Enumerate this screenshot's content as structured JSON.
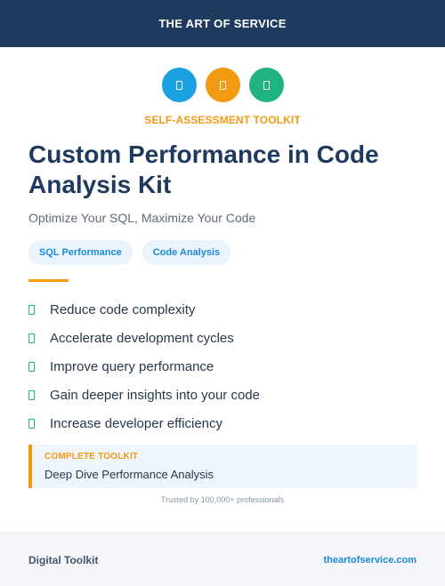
{
  "header": {
    "brand": "THE ART OF SERVICE"
  },
  "icons": [
    {
      "name": "blue-circle-icon",
      "color": "#1ba1e2"
    },
    {
      "name": "orange-circle-icon",
      "color": "#f29a12"
    },
    {
      "name": "green-circle-icon",
      "color": "#1fb383"
    }
  ],
  "kicker": "SELF-ASSESSMENT TOOLKIT",
  "title": "Custom Performance in Code Analysis Kit",
  "subtitle": "Optimize Your SQL, Maximize Your Code",
  "tags": [
    "SQL Performance",
    "Code Analysis"
  ],
  "benefits": [
    "Reduce code complexity",
    "Accelerate development cycles",
    "Improve query performance",
    "Gain deeper insights into your code",
    "Increase developer efficiency"
  ],
  "toolkit": {
    "label": "COMPLETE TOOLKIT",
    "name": "Deep Dive Performance Analysis"
  },
  "trusted": "Trusted by 100,000+ professionals",
  "footer": {
    "left": "Digital Toolkit",
    "right": "theartofservice.com"
  },
  "colors": {
    "navy": "#1e3a5f",
    "accent_orange": "#f29a12",
    "accent_blue": "#1c8ad8",
    "accent_green": "#1fb383"
  }
}
